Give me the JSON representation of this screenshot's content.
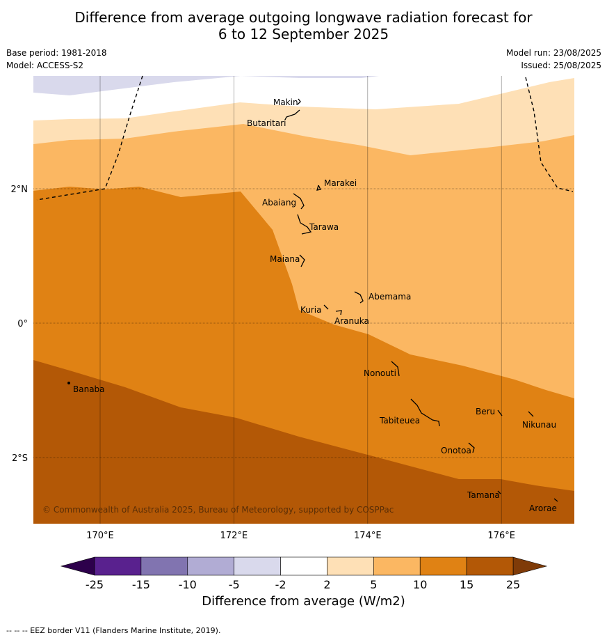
{
  "title_line1": "Difference from average outgoing longwave radiation forecast for",
  "title_line2": "6 to 12 September 2025",
  "base_period": "Base period: 1981-2018",
  "model": "Model: ACCESS-S2",
  "model_run": "Model run: 23/08/2025",
  "issued": "Issued: 25/08/2025",
  "copyright": "© Commonwealth of Australia 2025, Bureau of Meteorology, supported by COSPPac",
  "footer": "-- -- -- EEZ border V11 (Flanders Marine Institute, 2019).",
  "colorbar": {
    "title": "Difference from average (W/m2)",
    "ticks": [
      "-25",
      "-15",
      "-10",
      "-5",
      "-2",
      "2",
      "5",
      "10",
      "15",
      "25"
    ],
    "bins": [
      {
        "from": -25,
        "to": -15,
        "color": "#59218e"
      },
      {
        "from": -15,
        "to": -10,
        "color": "#8174b0"
      },
      {
        "from": -10,
        "to": -5,
        "color": "#b1acd4"
      },
      {
        "from": -5,
        "to": -2,
        "color": "#d9d9ec"
      },
      {
        "from": -2,
        "to": 2,
        "color": "#ffffff"
      },
      {
        "from": 2,
        "to": 5,
        "color": "#fee0b6"
      },
      {
        "from": 5,
        "to": 10,
        "color": "#fbb762"
      },
      {
        "from": 10,
        "to": 15,
        "color": "#e08214"
      },
      {
        "from": 15,
        "to": 25,
        "color": "#b35806"
      }
    ],
    "below_color": "#2d004b",
    "above_color": "#7f3b08"
  },
  "map": {
    "lon_range": [
      169,
      177.1
    ],
    "lat_range": [
      -3.0,
      3.7
    ],
    "lon_ticks": [
      {
        "value": 170,
        "label": "170°E"
      },
      {
        "value": 172,
        "label": "172°E"
      },
      {
        "value": 174,
        "label": "174°E"
      },
      {
        "value": 176,
        "label": "176°E"
      }
    ],
    "lat_ticks": [
      {
        "value": 2,
        "label": "2°N"
      },
      {
        "value": 0,
        "label": "0°"
      },
      {
        "value": -2,
        "label": "2°S"
      }
    ],
    "islands": [
      {
        "name": "Makin",
        "lon": 172.5,
        "lat": 3.35
      },
      {
        "name": "Butaritari",
        "lon": 172.2,
        "lat": 3.0
      },
      {
        "name": "Marakei",
        "lon": 173.4,
        "lat": 2.0
      },
      {
        "name": "Abaiang",
        "lon": 172.6,
        "lat": 1.75
      },
      {
        "name": "Tarawa",
        "lon": 173.0,
        "lat": 1.4
      },
      {
        "name": "Maiana",
        "lon": 172.6,
        "lat": 0.95
      },
      {
        "name": "Abemama",
        "lon": 174.0,
        "lat": 0.4
      },
      {
        "name": "Kuria",
        "lon": 173.0,
        "lat": 0.2
      },
      {
        "name": "Aranuka",
        "lon": 173.5,
        "lat": 0.04
      },
      {
        "name": "Nonouti",
        "lon": 174.0,
        "lat": -0.75
      },
      {
        "name": "Banaba",
        "lon": 169.6,
        "lat": -1.0
      },
      {
        "name": "Beru",
        "lon": 175.6,
        "lat": -1.3
      },
      {
        "name": "Nikunau",
        "lon": 176.3,
        "lat": -1.5
      },
      {
        "name": "Tabiteuea",
        "lon": 174.2,
        "lat": -1.45
      },
      {
        "name": "Onotoa",
        "lon": 175.1,
        "lat": -1.9
      },
      {
        "name": "Tamana",
        "lon": 175.5,
        "lat": -2.5
      },
      {
        "name": "Arorae",
        "lon": 176.4,
        "lat": -2.7
      }
    ]
  }
}
